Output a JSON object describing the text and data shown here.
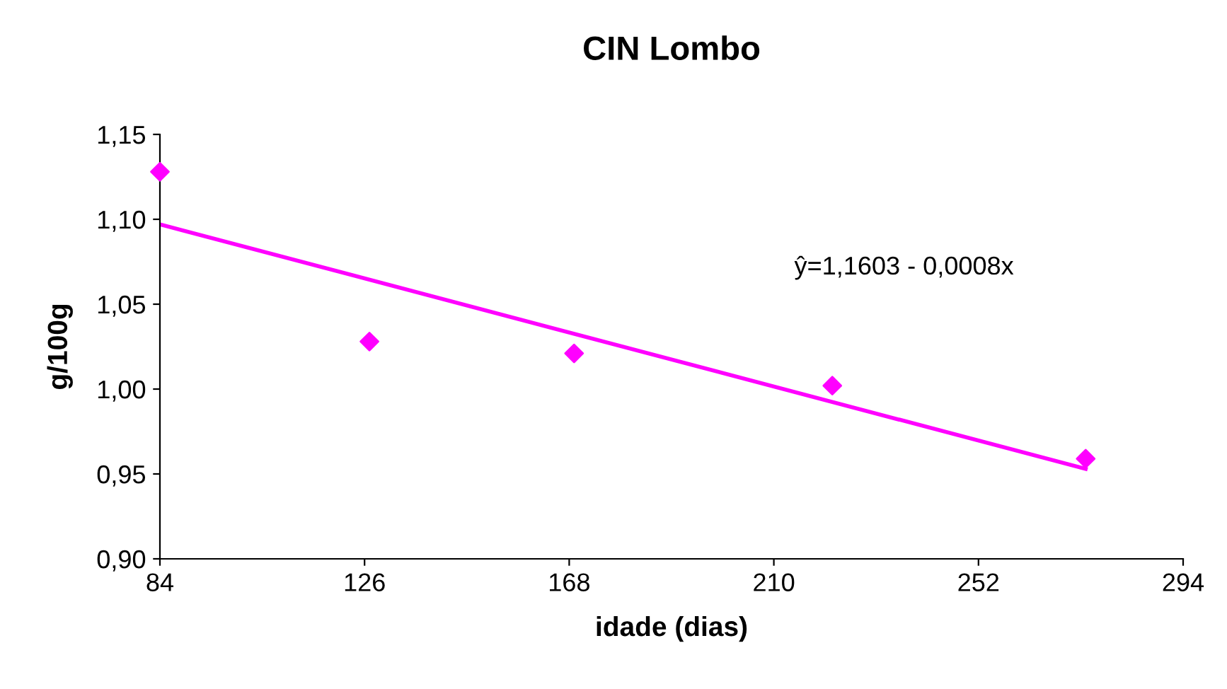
{
  "chart_data": {
    "type": "scatter",
    "title": "CIN Lombo",
    "xlabel": "idade (dias)",
    "ylabel": "g/100g",
    "xlim": [
      84,
      294
    ],
    "xticks": [
      84,
      126,
      168,
      210,
      252,
      294
    ],
    "ylim": [
      0.9,
      1.15
    ],
    "yticks": [
      {
        "value": 0.9,
        "label": "0,90"
      },
      {
        "value": 0.95,
        "label": "0,95"
      },
      {
        "value": 1.0,
        "label": "1,00"
      },
      {
        "value": 1.05,
        "label": "1,05"
      },
      {
        "value": 1.1,
        "label": "1,10"
      },
      {
        "value": 1.15,
        "label": "1,15"
      }
    ],
    "grid": false,
    "legend": false,
    "marker": "diamond",
    "series": [
      {
        "color": "#ff00ff",
        "x": [
          84,
          127,
          169,
          222,
          274
        ],
        "values": [
          1.128,
          1.028,
          1.021,
          1.002,
          0.959
        ]
      },
      {
        "type": "line",
        "color": "#ff00ff",
        "x": [
          84,
          274
        ],
        "values": [
          1.097,
          0.953
        ],
        "marker": "none",
        "line_style": "solid"
      }
    ],
    "annotations": [
      "ŷ=1,1603 - 0,0008x"
    ]
  }
}
